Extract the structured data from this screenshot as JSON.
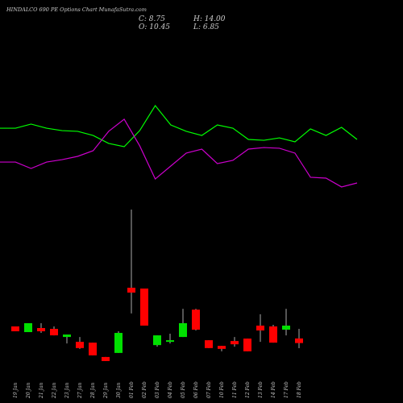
{
  "chart_data": [
    {
      "type": "candlestick",
      "title": "HINDALCO 690 PE Options Chart MunafaSutra.com",
      "close_label": "C: 8.75",
      "high_label": "H: 14.00",
      "open_label": "O: 10.45",
      "low_label": "L: 6.85",
      "categories": [
        "19 Jan",
        "20 Jan",
        "21 Jan",
        "22 Jan",
        "23 Jan",
        "27 Jan",
        "28 Jan",
        "29 Jan",
        "30 Jan",
        "01 Feb",
        "02 Feb",
        "03 Feb",
        "04 Feb",
        "05 Feb",
        "06 Feb",
        "07 Feb",
        "10 Feb",
        "11 Feb",
        "12 Feb",
        "13 Feb",
        "14 Feb",
        "17 Feb",
        "18 Feb"
      ],
      "open": [
        14.9,
        12.8,
        14.3,
        14.0,
        11.0,
        9.2,
        8.9,
        3.6,
        5.1,
        29.2,
        28.9,
        8.0,
        9.2,
        11.0,
        21.1,
        9.8,
        7.7,
        9.5,
        10.4,
        15.2,
        14.9,
        13.7,
        10.45
      ],
      "high": [
        14.9,
        16.1,
        16.1,
        14.9,
        11.9,
        11.0,
        8.9,
        3.6,
        13.1,
        58.1,
        28.9,
        11.6,
        12.2,
        21.4,
        21.4,
        9.8,
        7.7,
        11.0,
        10.4,
        19.4,
        15.5,
        21.4,
        14.0
      ],
      "low": [
        13.1,
        12.8,
        12.5,
        11.6,
        8.6,
        6.6,
        4.2,
        2.1,
        5.1,
        19.7,
        15.2,
        7.4,
        8.6,
        11.0,
        13.4,
        6.9,
        5.7,
        7.4,
        5.7,
        9.2,
        8.9,
        11.6,
        6.85
      ],
      "close": [
        13.1,
        16.1,
        13.1,
        11.6,
        11.9,
        6.9,
        4.2,
        2.1,
        12.5,
        27.4,
        15.2,
        11.6,
        9.8,
        16.1,
        13.7,
        6.9,
        6.6,
        8.3,
        5.7,
        13.4,
        8.9,
        15.2,
        8.75
      ],
      "up_color": "#00e000",
      "down_color": "#ff0000",
      "wick_color": "#aaaaaa",
      "ylim": [
        0,
        60
      ]
    },
    {
      "type": "line",
      "series": [
        {
          "color": "#00ff00",
          "values": [
            67.3,
            67.3,
            70.7,
            67.3,
            65.3,
            64.7,
            61.3,
            54.7,
            52,
            65.3,
            86,
            70,
            64.7,
            61.3,
            70,
            67.3,
            58,
            57.3,
            59.3,
            56,
            66.7,
            61.3,
            68,
            58
          ]
        },
        {
          "color": "#cc00cc",
          "values": [
            39.3,
            39.3,
            34,
            39.3,
            41.3,
            44,
            48.7,
            64.7,
            74.7,
            52.7,
            25.3,
            36,
            46.7,
            50,
            38,
            40.7,
            50,
            51.3,
            50.7,
            46.7,
            26.7,
            26,
            18.7,
            22
          ]
        }
      ],
      "ylim": [
        0,
        100
      ]
    }
  ]
}
